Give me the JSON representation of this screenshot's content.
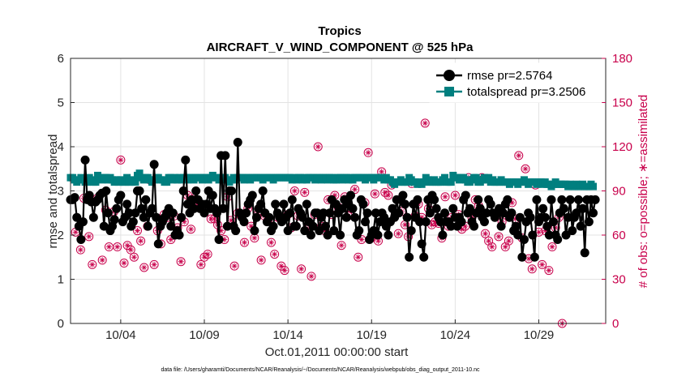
{
  "chart_data": {
    "type": "line",
    "title": "Tropics",
    "subtitle": "AIRCRAFT_V_WIND_COMPONENT @ 525 hPa",
    "xlabel": "Oct.01,2011 00:00:00 start",
    "ylabel_left": "rmse and totalspread",
    "ylabel_right": "# of obs: o=possible; ∗=assimilated",
    "footer": "data file: /Users/gharamti/Documents/NCAR/Reanalysis/~/Documents/NCAR/Reanalysis/webpub/obs_diag_output_2011-10.nc",
    "x_range": [
      1,
      33
    ],
    "x_ticks": [
      4,
      9,
      14,
      19,
      24,
      29
    ],
    "x_tick_labels": [
      "10/04",
      "10/09",
      "10/14",
      "10/19",
      "10/24",
      "10/29"
    ],
    "y_left_range": [
      0,
      6
    ],
    "y_left_ticks": [
      "0",
      "1",
      "2",
      "3",
      "4",
      "5",
      "6"
    ],
    "y_right_range": [
      0,
      180
    ],
    "y_right_ticks": [
      "0",
      "30",
      "60",
      "90",
      "120",
      "150",
      "180"
    ],
    "grid": true,
    "legend_position": "top-right",
    "colors": {
      "rmse": "#000000",
      "totalspread": "#007f7f",
      "obs": "#c8004b"
    },
    "x_step": 0.125,
    "x_start": 1.0,
    "series": [
      {
        "name": "rmse",
        "label": "rmse pr=2.5764",
        "axis": "left",
        "values": [
          2.8,
          2.8,
          2.85,
          2.4,
          2.2,
          1.9,
          2.3,
          3.7,
          2.8,
          2.9,
          2.75,
          2.4,
          2.75,
          2.8,
          2.9,
          2.95,
          2.2,
          3.0,
          2.5,
          2.1,
          2.2,
          2.35,
          2.6,
          2.8,
          2.9,
          2.3,
          2.4,
          2.7,
          2.5,
          2.2,
          2.3,
          2.5,
          3.0,
          3.0,
          2.6,
          2.4,
          2.8,
          2.2,
          2.5,
          2.6,
          3.6,
          2.4,
          1.8,
          2.2,
          2.3,
          2.4,
          2.5,
          2.6,
          2.2,
          2.5,
          2.0,
          2.1,
          2.0,
          2.4,
          3.0,
          3.7,
          2.7,
          2.5,
          2.8,
          2.6,
          3.0,
          2.8,
          2.6,
          2.7,
          2.5,
          2.7,
          3.0,
          2.6,
          2.9,
          2.6,
          2.5,
          1.9,
          3.8,
          2.6,
          3.8,
          2.2,
          3.0,
          3.0,
          2.2,
          2.1,
          4.1,
          2.5,
          2.4,
          2.3,
          2.5,
          2.7,
          2.8,
          2.9,
          2.1,
          2.4,
          2.6,
          2.7,
          3.0,
          2.5,
          2.3,
          2.4,
          2.1,
          2.2,
          2.7,
          2.5,
          2.4,
          2.3,
          2.7,
          2.4,
          2.1,
          2.5,
          2.8,
          2.2,
          2.2,
          2.6,
          2.5,
          2.4,
          2.1,
          2.7,
          2.3,
          2.0,
          2.2,
          2.5,
          2.5,
          2.1,
          2.4,
          2.5,
          2.2,
          2.0,
          2.5,
          2.8,
          2.1,
          2.7,
          2.5,
          2.0,
          2.6,
          2.8,
          2.4,
          2.7,
          2.9,
          2.6,
          2.4,
          2.0,
          2.1,
          2.8,
          2.7,
          2.3,
          2.5,
          1.9,
          2.0,
          2.1,
          2.5,
          2.0,
          2.3,
          2.5,
          2.4,
          2.2,
          2.0,
          2.3,
          2.6,
          2.4,
          2.8,
          2.5,
          2.8,
          2.9,
          2.7,
          2.4,
          1.5,
          2.1,
          2.7,
          2.4,
          2.8,
          2.3,
          1.8,
          1.5,
          2.3,
          2.8,
          2.5,
          2.9,
          2.8,
          2.6,
          2.4,
          2.3,
          2.0,
          2.5,
          2.3,
          2.3,
          2.2,
          2.6,
          2.4,
          2.2,
          2.4,
          2.3,
          2.8,
          2.9,
          2.5,
          2.6,
          2.3,
          2.2,
          2.5,
          2.8,
          2.6,
          2.4,
          2.3,
          2.5,
          2.8,
          2.7,
          2.5,
          2.4,
          2.5,
          2.6,
          2.2,
          2.5,
          2.7,
          2.8,
          2.4,
          2.5,
          2.1,
          2.2,
          2.0,
          2.4,
          1.5,
          1.9,
          2.3,
          2.5,
          2.4,
          2.0,
          1.5,
          2.8,
          2.3,
          2.4,
          2.6,
          2.4,
          2.2,
          2.0,
          2.8,
          2.3,
          2.0,
          1.9,
          2.5,
          2.8,
          2.6,
          2.0,
          2.4,
          2.8,
          2.1,
          2.4,
          2.5,
          2.8,
          2.2,
          2.6,
          1.6,
          2.8,
          2.3,
          2.8,
          2.5,
          2.8
        ]
      },
      {
        "name": "totalspread",
        "label": "totalspread pr=3.2506",
        "axis": "left",
        "values": [
          3.3,
          3.3,
          3.25,
          3.2,
          3.25,
          3.3,
          3.25,
          3.2,
          3.2,
          3.3,
          3.25,
          3.2,
          3.2,
          3.35,
          3.3,
          3.25,
          3.3,
          3.3,
          3.25,
          3.3,
          3.25,
          3.2,
          3.25,
          3.2,
          3.25,
          3.2,
          3.2,
          3.3,
          3.2,
          3.2,
          3.25,
          3.2,
          3.35,
          3.4,
          3.3,
          3.25,
          3.3,
          3.3,
          3.25,
          3.2,
          3.25,
          3.3,
          3.3,
          3.25,
          3.25,
          3.2,
          3.2,
          3.3,
          3.3,
          3.25,
          3.3,
          3.25,
          3.3,
          3.25,
          3.3,
          3.3,
          3.25,
          3.3,
          3.3,
          3.25,
          3.3,
          3.3,
          3.3,
          3.25,
          3.3,
          3.3,
          3.25,
          3.3,
          3.35,
          3.3,
          3.3,
          3.25,
          3.3,
          3.25,
          3.3,
          3.25,
          3.2,
          3.25,
          3.3,
          3.25,
          3.3,
          3.3,
          3.3,
          3.25,
          3.3,
          3.3,
          3.25,
          3.3,
          3.3,
          3.3,
          3.3,
          3.3,
          3.25,
          3.3,
          3.3,
          3.3,
          3.3,
          3.25,
          3.3,
          3.3,
          3.3,
          3.3,
          3.3,
          3.3,
          3.3,
          3.3,
          3.25,
          3.3,
          3.25,
          3.3,
          3.3,
          3.25,
          3.3,
          3.25,
          3.3,
          3.3,
          3.3,
          3.25,
          3.3,
          3.3,
          3.25,
          3.3,
          3.3,
          3.25,
          3.3,
          3.3,
          3.25,
          3.25,
          3.3,
          3.3,
          3.25,
          3.3,
          3.3,
          3.25,
          3.3,
          3.25,
          3.3,
          3.3,
          3.3,
          3.3,
          3.3,
          3.25,
          3.3,
          3.3,
          3.3,
          3.25,
          3.3,
          3.3,
          3.3,
          3.3,
          3.25,
          3.3,
          3.25,
          3.25,
          3.2,
          3.15,
          3.2,
          3.2,
          3.25,
          3.2,
          3.2,
          3.2,
          3.3,
          3.25,
          3.2,
          3.2,
          3.15,
          3.2,
          3.15,
          3.2,
          3.3,
          3.25,
          3.2,
          3.2,
          3.25,
          3.2,
          3.2,
          3.2,
          3.25,
          3.3,
          3.2,
          3.2,
          3.2,
          3.35,
          3.3,
          3.3,
          3.25,
          3.3,
          3.3,
          3.25,
          3.2,
          3.2,
          3.25,
          3.3,
          3.3,
          3.2,
          3.2,
          3.25,
          3.3,
          3.25,
          3.3,
          3.2,
          3.25,
          3.2,
          3.2,
          3.2,
          3.25,
          3.2,
          3.2,
          3.2,
          3.15,
          3.2,
          3.2,
          3.2,
          3.15,
          3.2,
          3.2,
          3.25,
          3.2,
          3.15,
          3.2,
          3.2,
          3.2,
          3.15,
          3.2,
          3.2,
          3.15,
          3.2,
          3.15,
          3.15,
          3.1,
          3.15,
          3.2,
          3.15,
          3.15,
          3.15,
          3.15,
          3.15,
          3.1,
          3.15,
          3.1,
          3.1,
          3.15,
          3.1,
          3.1,
          3.15,
          3.1,
          3.1,
          3.1,
          3.15,
          3.1
        ]
      },
      {
        "name": "obs_possible",
        "label": "# of obs: o=possible",
        "axis": "right",
        "marker": "circle-star",
        "points": [
          [
            1.3,
            62
          ],
          [
            1.6,
            50
          ],
          [
            1.8,
            85
          ],
          [
            2.1,
            59
          ],
          [
            2.3,
            40
          ],
          [
            2.6,
            85
          ],
          [
            2.9,
            43
          ],
          [
            3.1,
            77
          ],
          [
            3.3,
            52
          ],
          [
            3.6,
            76
          ],
          [
            3.8,
            52
          ],
          [
            4.0,
            111
          ],
          [
            4.2,
            41
          ],
          [
            4.4,
            53
          ],
          [
            4.6,
            50
          ],
          [
            4.8,
            45
          ],
          [
            5.0,
            63
          ],
          [
            5.2,
            56
          ],
          [
            5.4,
            38
          ],
          [
            5.6,
            66
          ],
          [
            5.8,
            97
          ],
          [
            6.0,
            40
          ],
          [
            6.2,
            63
          ],
          [
            6.4,
            54
          ],
          [
            6.6,
            74
          ],
          [
            6.8,
            72
          ],
          [
            7.0,
            57
          ],
          [
            7.2,
            73
          ],
          [
            7.4,
            65
          ],
          [
            7.6,
            42
          ],
          [
            7.8,
            69
          ],
          [
            8.0,
            87
          ],
          [
            8.2,
            64
          ],
          [
            8.4,
            85
          ],
          [
            8.6,
            81
          ],
          [
            8.8,
            40
          ],
          [
            9.0,
            45
          ],
          [
            9.2,
            47
          ],
          [
            9.4,
            71
          ],
          [
            9.6,
            71
          ],
          [
            9.8,
            67
          ],
          [
            10.0,
            63
          ],
          [
            10.2,
            57
          ],
          [
            10.4,
            86
          ],
          [
            10.6,
            70
          ],
          [
            10.8,
            39
          ],
          [
            11.0,
            75
          ],
          [
            11.2,
            73
          ],
          [
            11.4,
            55
          ],
          [
            11.6,
            78
          ],
          [
            11.8,
            66
          ],
          [
            12.0,
            58
          ],
          [
            12.2,
            74
          ],
          [
            12.4,
            43
          ],
          [
            12.6,
            73
          ],
          [
            12.8,
            70
          ],
          [
            13.0,
            55
          ],
          [
            13.2,
            47
          ],
          [
            13.4,
            72
          ],
          [
            13.6,
            39
          ],
          [
            13.8,
            36
          ],
          [
            14.0,
            74
          ],
          [
            14.2,
            65
          ],
          [
            14.4,
            90
          ],
          [
            14.6,
            73
          ],
          [
            14.8,
            37
          ],
          [
            15.0,
            89
          ],
          [
            15.2,
            64
          ],
          [
            15.4,
            32
          ],
          [
            15.6,
            74
          ],
          [
            15.8,
            120
          ],
          [
            16.0,
            66
          ],
          [
            16.2,
            63
          ],
          [
            16.4,
            84
          ],
          [
            16.6,
            74
          ],
          [
            16.8,
            87
          ],
          [
            17.0,
            79
          ],
          [
            17.2,
            53
          ],
          [
            17.4,
            86
          ],
          [
            17.6,
            73
          ],
          [
            17.8,
            78
          ],
          [
            18.0,
            91
          ],
          [
            18.2,
            45
          ],
          [
            18.4,
            57
          ],
          [
            18.6,
            82
          ],
          [
            18.8,
            116
          ],
          [
            19.0,
            58
          ],
          [
            19.2,
            88
          ],
          [
            19.4,
            56
          ],
          [
            19.6,
            103
          ],
          [
            19.8,
            89
          ],
          [
            20.0,
            87
          ],
          [
            20.2,
            94
          ],
          [
            20.4,
            73
          ],
          [
            20.6,
            61
          ],
          [
            20.8,
            76
          ],
          [
            21.0,
            67
          ],
          [
            21.2,
            59
          ],
          [
            21.4,
            95
          ],
          [
            21.6,
            73
          ],
          [
            21.8,
            81
          ],
          [
            22.0,
            72
          ],
          [
            22.2,
            136
          ],
          [
            22.4,
            78
          ],
          [
            22.6,
            67
          ],
          [
            22.8,
            69
          ],
          [
            23.0,
            68
          ],
          [
            23.2,
            58
          ],
          [
            23.4,
            86
          ],
          [
            23.6,
            66
          ],
          [
            23.8,
            72
          ],
          [
            24.0,
            87
          ],
          [
            24.2,
            74
          ],
          [
            24.4,
            64
          ],
          [
            24.6,
            66
          ],
          [
            24.8,
            99
          ],
          [
            25.0,
            72
          ],
          [
            25.2,
            84
          ],
          [
            25.4,
            80
          ],
          [
            25.6,
            99
          ],
          [
            25.8,
            61
          ],
          [
            26.0,
            56
          ],
          [
            26.2,
            52
          ],
          [
            26.4,
            74
          ],
          [
            26.6,
            59
          ],
          [
            26.8,
            69
          ],
          [
            27.0,
            52
          ],
          [
            27.2,
            56
          ],
          [
            27.4,
            82
          ],
          [
            27.6,
            71
          ],
          [
            27.8,
            114
          ],
          [
            28.0,
            58
          ],
          [
            28.2,
            105
          ],
          [
            28.4,
            44
          ],
          [
            28.6,
            37
          ],
          [
            28.8,
            94
          ],
          [
            29.0,
            62
          ],
          [
            29.2,
            40
          ],
          [
            29.4,
            63
          ],
          [
            29.6,
            36
          ],
          [
            29.8,
            52
          ],
          [
            30.0,
            65
          ],
          [
            30.2,
            72
          ],
          [
            30.4,
            0
          ]
        ]
      }
    ]
  }
}
